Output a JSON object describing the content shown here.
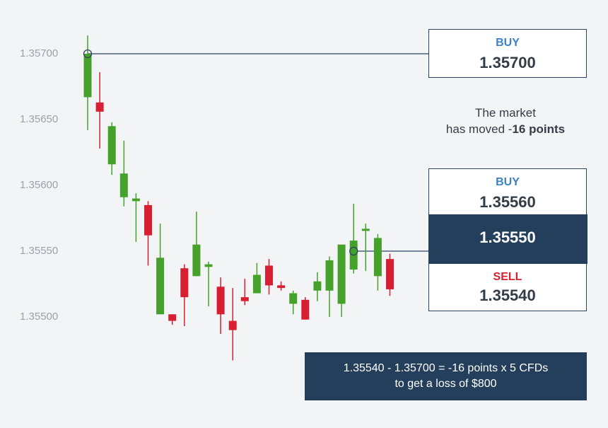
{
  "chart_data": {
    "type": "candlestick",
    "yticks": [
      "1.35700",
      "1.35650",
      "1.35600",
      "1.35550",
      "1.35500"
    ],
    "ylim": [
      1.3548,
      1.3573
    ],
    "grid": false,
    "colors": {
      "up": "#46a12b",
      "down": "#d81e32"
    },
    "candles": [
      {
        "o": 1.35667,
        "h": 1.35714,
        "l": 1.35642,
        "c": 1.357
      },
      {
        "o": 1.35663,
        "h": 1.35686,
        "l": 1.35628,
        "c": 1.35656
      },
      {
        "o": 1.35616,
        "h": 1.35648,
        "l": 1.35608,
        "c": 1.35645
      },
      {
        "o": 1.35591,
        "h": 1.35634,
        "l": 1.35584,
        "c": 1.35609
      },
      {
        "o": 1.35588,
        "h": 1.35594,
        "l": 1.35557,
        "c": 1.3559
      },
      {
        "o": 1.35585,
        "h": 1.35588,
        "l": 1.35539,
        "c": 1.35562
      },
      {
        "o": 1.35502,
        "h": 1.35571,
        "l": 1.35502,
        "c": 1.35545
      },
      {
        "o": 1.35502,
        "h": 1.35502,
        "l": 1.35494,
        "c": 1.35497
      },
      {
        "o": 1.35537,
        "h": 1.3554,
        "l": 1.35493,
        "c": 1.35515
      },
      {
        "o": 1.35531,
        "h": 1.3558,
        "l": 1.35531,
        "c": 1.35555
      },
      {
        "o": 1.35538,
        "h": 1.35542,
        "l": 1.35508,
        "c": 1.3554
      },
      {
        "o": 1.35523,
        "h": 1.3553,
        "l": 1.35487,
        "c": 1.35502
      },
      {
        "o": 1.35497,
        "h": 1.35522,
        "l": 1.35467,
        "c": 1.3549
      },
      {
        "o": 1.35515,
        "h": 1.35529,
        "l": 1.35509,
        "c": 1.35512
      },
      {
        "o": 1.35518,
        "h": 1.35541,
        "l": 1.35518,
        "c": 1.35532
      },
      {
        "o": 1.35539,
        "h": 1.35544,
        "l": 1.35517,
        "c": 1.35524
      },
      {
        "o": 1.35524,
        "h": 1.35527,
        "l": 1.3552,
        "c": 1.35522
      },
      {
        "o": 1.3551,
        "h": 1.3552,
        "l": 1.35502,
        "c": 1.35518
      },
      {
        "o": 1.35513,
        "h": 1.35515,
        "l": 1.35498,
        "c": 1.35498
      },
      {
        "o": 1.3552,
        "h": 1.35534,
        "l": 1.35512,
        "c": 1.35527
      },
      {
        "o": 1.3552,
        "h": 1.35546,
        "l": 1.355,
        "c": 1.35543
      },
      {
        "o": 1.3551,
        "h": 1.35555,
        "l": 1.355,
        "c": 1.35555
      },
      {
        "o": 1.35536,
        "h": 1.35586,
        "l": 1.35533,
        "c": 1.35558
      },
      {
        "o": 1.35566,
        "h": 1.35571,
        "l": 1.35535,
        "c": 1.35567
      },
      {
        "o": 1.35531,
        "h": 1.35563,
        "l": 1.3552,
        "c": 1.3556
      },
      {
        "o": 1.35544,
        "h": 1.35548,
        "l": 1.35516,
        "c": 1.35521
      }
    ],
    "markers": [
      {
        "candle": 0,
        "price": 1.357,
        "target": "buy-box-top"
      },
      {
        "candle": 22,
        "price": 1.3555,
        "target": "quote-panel"
      }
    ]
  },
  "buy_box": {
    "label": "BUY",
    "value": "1.35700"
  },
  "note": {
    "line1": "The market",
    "line2_prefix": "has moved -",
    "line2_bold": "16 points"
  },
  "quote": {
    "buy_label": "BUY",
    "buy_value": "1.35560",
    "mid_value": "1.35550",
    "sell_label": "SELL",
    "sell_value": "1.35540"
  },
  "calculation": {
    "line1": "1.35540 - 1.35700 = -16 points x 5 CFDs",
    "line2": "to get a loss of $800"
  }
}
